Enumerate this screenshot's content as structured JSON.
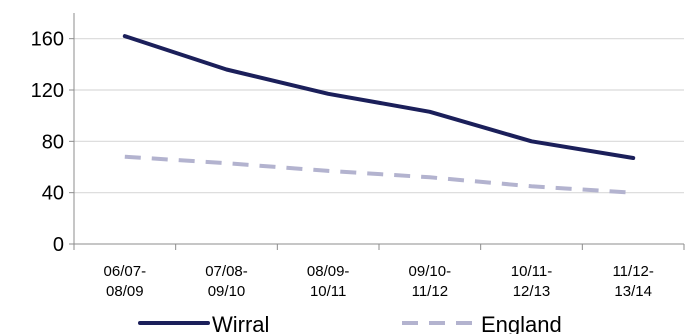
{
  "chart_data": {
    "type": "line",
    "categories": [
      [
        "06/07-",
        "08/09"
      ],
      [
        "07/08-",
        "09/10"
      ],
      [
        "08/09-",
        "10/11"
      ],
      [
        "09/10-",
        "11/12"
      ],
      [
        "10/11-",
        "12/13"
      ],
      [
        "11/12-",
        "13/14"
      ]
    ],
    "series": [
      {
        "name": "Wirral",
        "values": [
          162,
          136,
          117,
          103,
          80,
          67
        ],
        "color": "#1b1f5a",
        "style": "solid"
      },
      {
        "name": "England",
        "values": [
          68,
          63,
          57,
          52,
          45,
          40
        ],
        "color": "#b3b3cf",
        "style": "dashed"
      }
    ],
    "yticks": [
      0,
      40,
      80,
      120,
      160
    ],
    "ylim": [
      0,
      180
    ],
    "grid": true,
    "legend": "bottom",
    "title": "",
    "xlabel": "",
    "ylabel": ""
  }
}
